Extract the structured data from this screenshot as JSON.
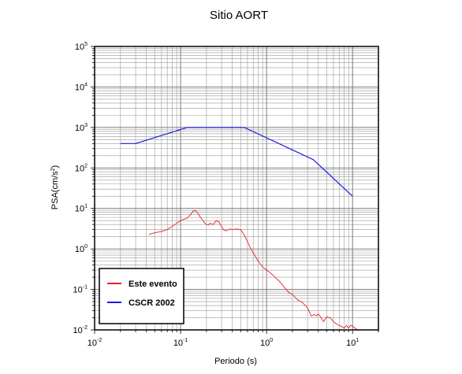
{
  "chart_data": {
    "type": "line",
    "title": "Sitio AORT",
    "xlabel": "Periodo (s)",
    "ylabel_base": "PSA(cm/s",
    "ylabel_exp": "2",
    "ylabel_close": ")",
    "x_scale": "log",
    "y_scale": "log",
    "xlim": [
      0.01,
      20
    ],
    "ylim": [
      0.01,
      100000
    ],
    "grid": true,
    "legend_position": "bottom-left",
    "x_ticks": [
      {
        "value": 0.01,
        "base": "10",
        "exp": "-2"
      },
      {
        "value": 0.1,
        "base": "10",
        "exp": "-1"
      },
      {
        "value": 1,
        "base": "10",
        "exp": "0"
      },
      {
        "value": 10,
        "base": "10",
        "exp": "1"
      }
    ],
    "y_ticks": [
      {
        "value": 0.01,
        "base": "10",
        "exp": "-2"
      },
      {
        "value": 0.1,
        "base": "10",
        "exp": "-1"
      },
      {
        "value": 1,
        "base": "10",
        "exp": "0"
      },
      {
        "value": 10,
        "base": "10",
        "exp": "1"
      },
      {
        "value": 100,
        "base": "10",
        "exp": "2"
      },
      {
        "value": 1000,
        "base": "10",
        "exp": "3"
      },
      {
        "value": 10000,
        "base": "10",
        "exp": "4"
      },
      {
        "value": 100000,
        "base": "10",
        "exp": "5"
      }
    ],
    "series": [
      {
        "name": "Este evento",
        "color": "#e8202a",
        "x": [
          0.043,
          0.05,
          0.06,
          0.07,
          0.08,
          0.09,
          0.1,
          0.11,
          0.12,
          0.13,
          0.14,
          0.15,
          0.16,
          0.17,
          0.18,
          0.19,
          0.2,
          0.21,
          0.22,
          0.24,
          0.26,
          0.28,
          0.3,
          0.32,
          0.34,
          0.36,
          0.38,
          0.4,
          0.45,
          0.5,
          0.55,
          0.6,
          0.65,
          0.7,
          0.8,
          0.9,
          1.0,
          1.1,
          1.2,
          1.4,
          1.6,
          1.8,
          2.0,
          2.3,
          2.6,
          3.0,
          3.3,
          3.6,
          3.8,
          4.0,
          4.3,
          4.6,
          5.0,
          5.5,
          6.0,
          6.5,
          7.0,
          7.5,
          8.0,
          8.5,
          9.0,
          9.5,
          10.0,
          11.0,
          12.0
        ],
        "y": [
          2.3,
          2.5,
          2.7,
          3.0,
          3.6,
          4.3,
          5.0,
          5.4,
          5.8,
          7.0,
          8.6,
          8.8,
          7.5,
          6.0,
          5.2,
          4.4,
          4.0,
          3.9,
          4.3,
          4.0,
          5.0,
          4.6,
          3.5,
          2.9,
          2.8,
          3.0,
          3.1,
          3.0,
          3.1,
          3.0,
          2.2,
          1.5,
          1.05,
          0.8,
          0.5,
          0.36,
          0.3,
          0.26,
          0.22,
          0.16,
          0.115,
          0.085,
          0.075,
          0.055,
          0.048,
          0.035,
          0.022,
          0.024,
          0.022,
          0.025,
          0.02,
          0.016,
          0.021,
          0.02,
          0.016,
          0.014,
          0.013,
          0.012,
          0.011,
          0.013,
          0.011,
          0.013,
          0.0125,
          0.0105,
          0.0098
        ]
      },
      {
        "name": "CSCR 2002",
        "color": "#1a1ae6",
        "x": [
          0.02,
          0.03,
          0.12,
          0.55,
          3.5,
          10.0
        ],
        "y": [
          400,
          400,
          1000,
          1000,
          160,
          20
        ]
      }
    ]
  }
}
